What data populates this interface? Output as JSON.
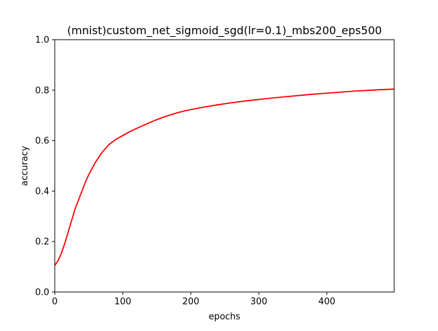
{
  "chart_data": {
    "type": "line",
    "title": "(mnist)custom_net_sigmoid_sgd(lr=0.1)_mbs200_eps500",
    "xlabel": "epochs",
    "ylabel": "accuracy",
    "xlim": [
      0,
      499
    ],
    "ylim": [
      0.0,
      1.0
    ],
    "xticks": [
      0,
      100,
      200,
      300,
      400
    ],
    "xtick_labels": [
      "0",
      "100",
      "200",
      "300",
      "400"
    ],
    "yticks": [
      0.0,
      0.2,
      0.4,
      0.6,
      0.8,
      1.0
    ],
    "ytick_labels": [
      "0.0",
      "0.2",
      "0.4",
      "0.6",
      "0.8",
      "1.0"
    ],
    "grid": false,
    "legend": "none",
    "series": [
      {
        "color": "#ff0000",
        "x": [
          0,
          5,
          10,
          15,
          20,
          25,
          30,
          35,
          40,
          45,
          50,
          55,
          60,
          65,
          70,
          75,
          80,
          90,
          100,
          110,
          120,
          130,
          140,
          150,
          160,
          170,
          180,
          190,
          200,
          220,
          240,
          260,
          280,
          300,
          320,
          340,
          360,
          380,
          400,
          420,
          440,
          460,
          480,
          499
        ],
        "y": [
          0.105,
          0.125,
          0.155,
          0.195,
          0.24,
          0.285,
          0.33,
          0.365,
          0.4,
          0.435,
          0.465,
          0.49,
          0.515,
          0.535,
          0.555,
          0.57,
          0.585,
          0.605,
          0.62,
          0.635,
          0.648,
          0.66,
          0.672,
          0.683,
          0.693,
          0.702,
          0.71,
          0.717,
          0.723,
          0.733,
          0.742,
          0.75,
          0.757,
          0.763,
          0.769,
          0.774,
          0.779,
          0.784,
          0.788,
          0.792,
          0.796,
          0.799,
          0.802,
          0.804
        ]
      }
    ]
  }
}
